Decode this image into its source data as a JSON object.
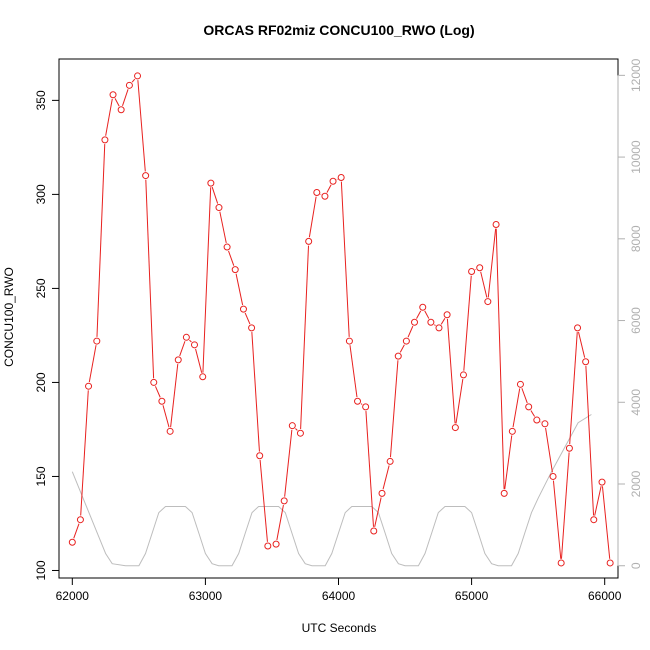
{
  "chart_data": {
    "type": "line",
    "title": "ORCAS RF02miz CONCU100_RWO (Log)",
    "xlabel": "UTC Seconds",
    "ylabel": "CONCU100_RWO",
    "xlim": [
      61900,
      66100
    ],
    "ylim": [
      96,
      372
    ],
    "y2lim": [
      -300,
      12400
    ],
    "x_ticks": [
      62000,
      63000,
      64000,
      65000,
      66000
    ],
    "y_ticks": [
      100,
      150,
      200,
      250,
      300,
      350
    ],
    "y2_ticks": [
      0,
      2000,
      4000,
      6000,
      8000,
      10000,
      12000
    ],
    "grid": false,
    "colors": {
      "primary": "#e8211f",
      "secondary": "#bdbdbd",
      "axis": "#000000",
      "right_axis": "#b0b0b0"
    },
    "series": [
      {
        "values_xy": [
          [
            62000,
            115
          ],
          [
            62061,
            127
          ],
          [
            62122,
            198
          ],
          [
            62184,
            222
          ],
          [
            62245,
            329
          ],
          [
            62306,
            353
          ],
          [
            62367,
            345
          ],
          [
            62429,
            358
          ],
          [
            62490,
            363
          ],
          [
            62551,
            310
          ],
          [
            62612,
            200
          ],
          [
            62673,
            190
          ],
          [
            62735,
            174
          ],
          [
            62796,
            212
          ],
          [
            62857,
            224
          ],
          [
            62918,
            220
          ],
          [
            62980,
            203
          ],
          [
            63041,
            306
          ],
          [
            63102,
            293
          ],
          [
            63163,
            272
          ],
          [
            63224,
            260
          ],
          [
            63286,
            239
          ],
          [
            63347,
            229
          ],
          [
            63408,
            161
          ],
          [
            63469,
            113
          ],
          [
            63531,
            114
          ],
          [
            63592,
            137
          ],
          [
            63653,
            177
          ],
          [
            63714,
            173
          ],
          [
            63776,
            275
          ],
          [
            63837,
            301
          ],
          [
            63898,
            299
          ],
          [
            63959,
            307
          ],
          [
            64020,
            309
          ],
          [
            64082,
            222
          ],
          [
            64143,
            190
          ],
          [
            64204,
            187
          ],
          [
            64265,
            121
          ],
          [
            64327,
            141
          ],
          [
            64388,
            158
          ],
          [
            64449,
            214
          ],
          [
            64510,
            222
          ],
          [
            64571,
            232
          ],
          [
            64633,
            240
          ],
          [
            64694,
            232
          ],
          [
            64755,
            229
          ],
          [
            64816,
            236
          ],
          [
            64878,
            176
          ],
          [
            64939,
            204
          ],
          [
            65000,
            259
          ],
          [
            65061,
            261
          ],
          [
            65122,
            243
          ],
          [
            65184,
            284
          ],
          [
            65245,
            141
          ],
          [
            65306,
            174
          ],
          [
            65367,
            199
          ],
          [
            65429,
            187
          ],
          [
            65490,
            180
          ],
          [
            65551,
            178
          ],
          [
            65612,
            150
          ],
          [
            65673,
            104
          ],
          [
            65735,
            165
          ],
          [
            65796,
            229
          ],
          [
            65857,
            211
          ],
          [
            65918,
            127
          ],
          [
            65980,
            147
          ],
          [
            66041,
            104
          ]
        ]
      },
      {
        "axis": "right",
        "values_xy": [
          [
            62000,
            2300
          ],
          [
            62100,
            1500
          ],
          [
            62200,
            700
          ],
          [
            62250,
            300
          ],
          [
            62300,
            50
          ],
          [
            62400,
            0
          ],
          [
            62500,
            0
          ],
          [
            62550,
            300
          ],
          [
            62600,
            800
          ],
          [
            62650,
            1300
          ],
          [
            62700,
            1450
          ],
          [
            62800,
            1450
          ],
          [
            62850,
            1450
          ],
          [
            62900,
            1300
          ],
          [
            62950,
            800
          ],
          [
            63000,
            300
          ],
          [
            63050,
            50
          ],
          [
            63100,
            0
          ],
          [
            63200,
            0
          ],
          [
            63250,
            300
          ],
          [
            63300,
            800
          ],
          [
            63350,
            1300
          ],
          [
            63400,
            1450
          ],
          [
            63500,
            1450
          ],
          [
            63550,
            1450
          ],
          [
            63600,
            1300
          ],
          [
            63650,
            800
          ],
          [
            63700,
            300
          ],
          [
            63750,
            50
          ],
          [
            63800,
            0
          ],
          [
            63900,
            0
          ],
          [
            63950,
            300
          ],
          [
            64000,
            800
          ],
          [
            64050,
            1300
          ],
          [
            64100,
            1450
          ],
          [
            64200,
            1450
          ],
          [
            64250,
            1450
          ],
          [
            64300,
            1300
          ],
          [
            64350,
            800
          ],
          [
            64400,
            300
          ],
          [
            64450,
            50
          ],
          [
            64500,
            0
          ],
          [
            64600,
            0
          ],
          [
            64650,
            300
          ],
          [
            64700,
            800
          ],
          [
            64750,
            1300
          ],
          [
            64800,
            1450
          ],
          [
            64900,
            1450
          ],
          [
            64950,
            1450
          ],
          [
            65000,
            1300
          ],
          [
            65050,
            800
          ],
          [
            65100,
            300
          ],
          [
            65150,
            50
          ],
          [
            65200,
            0
          ],
          [
            65300,
            0
          ],
          [
            65350,
            300
          ],
          [
            65400,
            800
          ],
          [
            65450,
            1300
          ],
          [
            65500,
            1650
          ],
          [
            65600,
            2300
          ],
          [
            65700,
            2900
          ],
          [
            65800,
            3500
          ],
          [
            65900,
            3700
          ]
        ]
      }
    ]
  }
}
